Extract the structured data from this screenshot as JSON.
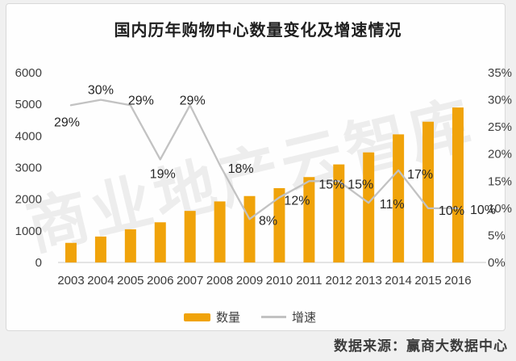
{
  "title": "国内历年购物中心数量变化及增速情况",
  "watermark": "商业地产云智库",
  "source": "数据来源：赢商大数据中心",
  "colors": {
    "bar": "#F0A30A",
    "line": "#C2C2C2",
    "page_background": "#F0F0F0",
    "card_background": "#FEFEFE",
    "card_border": "#D9D9D9",
    "axis_line": "#DCDCDC"
  },
  "legend": [
    {
      "label": "数量",
      "marker": "bar"
    },
    {
      "label": "增速",
      "marker": "line"
    }
  ],
  "chart_data": {
    "type": "bar+line",
    "title": "国内历年购物中心数量变化及增速情况",
    "categories": [
      "2003",
      "2004",
      "2005",
      "2006",
      "2007",
      "2008",
      "2009",
      "2010",
      "2011",
      "2012",
      "2013",
      "2014",
      "2015",
      "2016"
    ],
    "series": [
      {
        "name": "数量",
        "type": "bar",
        "axis": "left",
        "color": "#F0A30A",
        "values": [
          620,
          820,
          1050,
          1270,
          1630,
          1930,
          2100,
          2350,
          2700,
          3100,
          3480,
          4050,
          4450,
          4900
        ]
      },
      {
        "name": "增速",
        "type": "line",
        "axis": "right",
        "color": "#C2C2C2",
        "values": [
          29,
          30,
          29,
          19,
          29,
          18,
          8,
          12,
          15,
          15,
          11,
          17,
          10,
          10
        ],
        "labels": [
          "29%",
          "30%",
          "29%",
          "19%",
          "29%",
          "18%",
          "8%",
          "12%",
          "15%",
          "15%",
          "11%",
          "17%",
          "10%",
          "10%"
        ]
      }
    ],
    "left_axis": {
      "min": 0,
      "max": 6000,
      "ticks": [
        0,
        1000,
        2000,
        3000,
        4000,
        5000,
        6000
      ]
    },
    "right_axis": {
      "min": 0,
      "max": 35,
      "ticks": [
        0,
        5,
        10,
        15,
        20,
        25,
        30,
        35
      ],
      "tick_labels": [
        "0%",
        "5%",
        "10%",
        "15%",
        "20%",
        "25%",
        "30%",
        "35%"
      ]
    },
    "grid": false,
    "legend_position": "bottom"
  }
}
